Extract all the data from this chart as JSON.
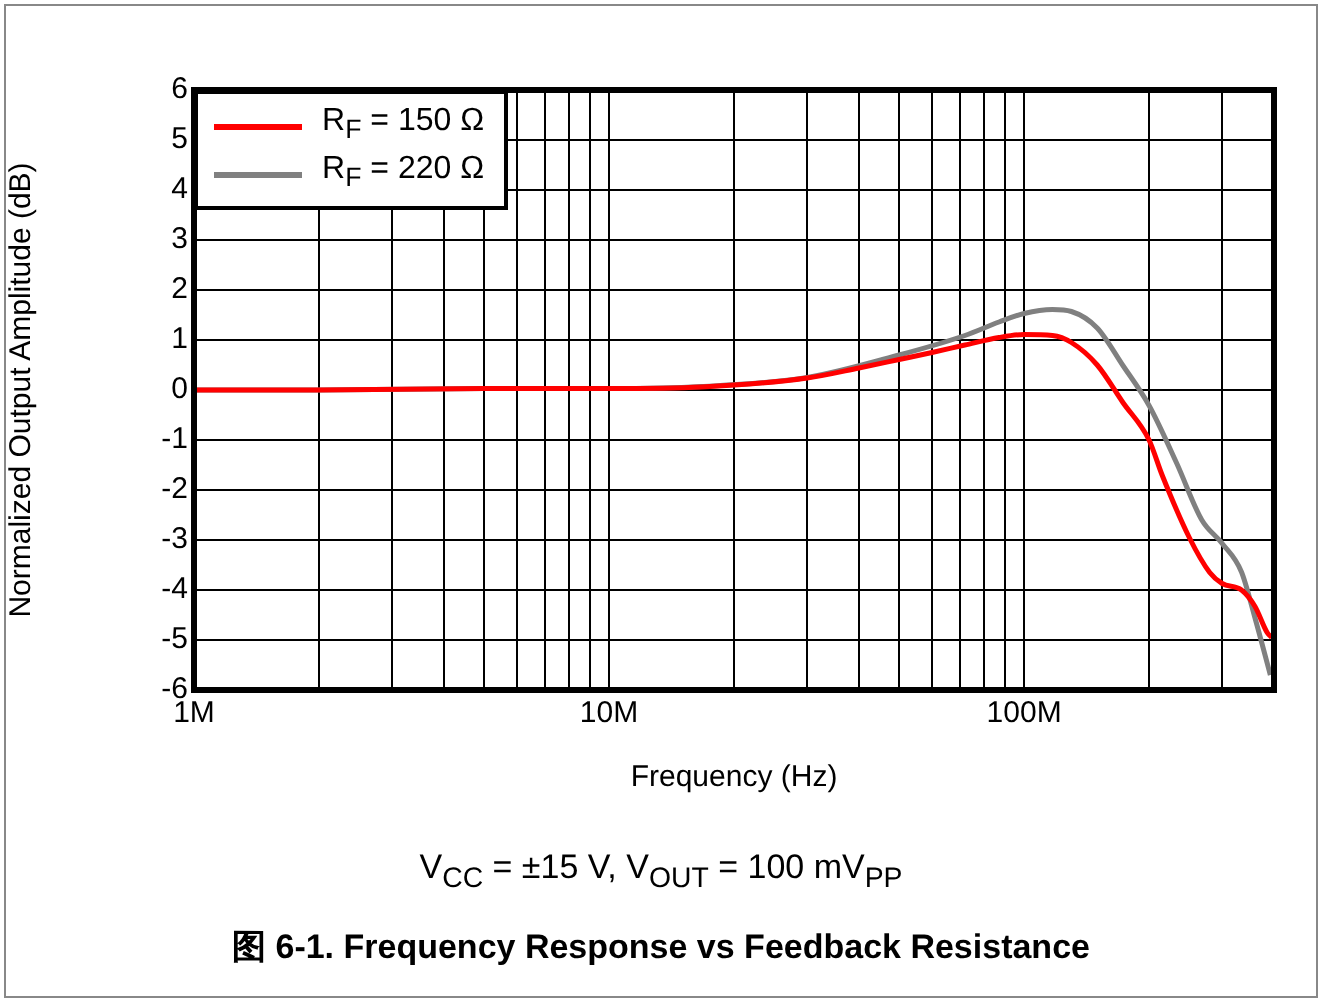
{
  "chart_data": {
    "type": "line",
    "title": "图 6-1. Frequency Response vs Feedback Resistance",
    "subtitle": "V$_{CC}$ = ±15 V, V$_{OUT}$ = 100 mV$_{PP}$",
    "xlabel": "Frequency (Hz)",
    "ylabel": "Normalized Output Amplitude (dB)",
    "log": "x",
    "grid": true,
    "legend": "top left",
    "marker": "none",
    "line_style": "solid",
    "xlim": [
      1000000,
      400000000
    ],
    "xticks": [
      {
        "value": 1000000,
        "label": "1M"
      },
      {
        "value": 2000000,
        "label": null
      },
      {
        "value": 3000000,
        "label": null
      },
      {
        "value": 4000000,
        "label": null
      },
      {
        "value": 5000000,
        "label": null
      },
      {
        "value": 6000000,
        "label": null
      },
      {
        "value": 7000000,
        "label": null
      },
      {
        "value": 8000000,
        "label": null
      },
      {
        "value": 9000000,
        "label": null
      },
      {
        "value": 10000000,
        "label": "10M"
      },
      {
        "value": 20000000,
        "label": null
      },
      {
        "value": 30000000,
        "label": null
      },
      {
        "value": 40000000,
        "label": null
      },
      {
        "value": 50000000,
        "label": null
      },
      {
        "value": 60000000,
        "label": null
      },
      {
        "value": 70000000,
        "label": null
      },
      {
        "value": 80000000,
        "label": null
      },
      {
        "value": 90000000,
        "label": null
      },
      {
        "value": 100000000,
        "label": "100M"
      },
      {
        "value": 200000000,
        "label": null
      },
      {
        "value": 300000000,
        "label": null
      }
    ],
    "ylim": [
      -6,
      6
    ],
    "yticks": [
      -6,
      -5,
      -4,
      -3,
      -2,
      -1,
      0,
      1,
      2,
      3,
      4,
      5,
      6
    ],
    "series": [
      {
        "name": "R$_{F}$ = 150 Ω",
        "color": "#ff0000",
        "x": [
          1000000,
          2000000,
          5000000,
          10000000,
          16700000,
          30000000,
          40000000,
          50000000,
          60000000,
          72000000,
          87000000,
          100000000,
          117000000,
          130000000,
          150000000,
          173000000,
          200000000,
          215000000,
          250000000,
          280000000,
          300000000,
          334000000,
          360000000,
          385000000,
          395000000
        ],
        "values": [
          0,
          0,
          0.03,
          0.03,
          0.06,
          0.24,
          0.44,
          0.61,
          0.75,
          0.9,
          1.05,
          1.11,
          1.09,
          0.95,
          0.5,
          -0.25,
          -1.0,
          -1.7,
          -2.95,
          -3.65,
          -3.87,
          -4.0,
          -4.33,
          -4.85,
          -4.95
        ]
      },
      {
        "name": "R$_{F}$ = 220 Ω",
        "color": "#808080",
        "x": [
          1000000,
          2000000,
          5000000,
          10000000,
          16700000,
          30000000,
          50000000,
          72000000,
          87000000,
          100000000,
          117000000,
          130000000,
          150000000,
          173000000,
          200000000,
          233000000,
          268000000,
          300000000,
          334000000,
          360000000,
          392000000
        ],
        "values": [
          0,
          0,
          0.03,
          0.03,
          0.07,
          0.25,
          0.7,
          1.09,
          1.36,
          1.53,
          1.61,
          1.57,
          1.24,
          0.49,
          -0.31,
          -1.46,
          -2.6,
          -3.07,
          -3.64,
          -4.56,
          -5.7
        ]
      }
    ]
  }
}
